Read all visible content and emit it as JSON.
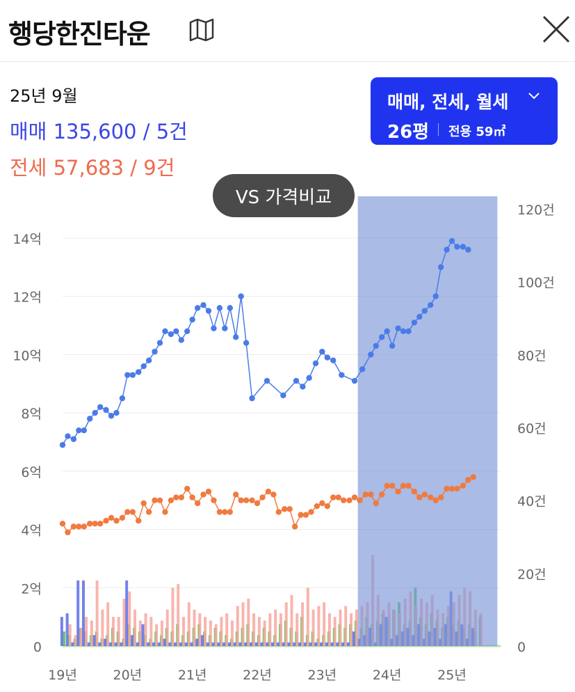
{
  "header": {
    "title": "행당한진타운",
    "map_icon": "map-icon",
    "close_icon": "close-icon"
  },
  "summary": {
    "date": "25년 9월",
    "sale": "매매 135,600 / 5건",
    "jeonse": "전세 57,683 / 9건"
  },
  "filter": {
    "types": "매매, 전세, 월세",
    "size": "26평",
    "area": "전용 59㎡"
  },
  "vs_button": {
    "label": "VS 가격비교"
  },
  "colors": {
    "sale": "#4a7be8",
    "jeonse": "#f07a3f",
    "highlight": "#7d97d8",
    "bar_green": "#4fc24a",
    "bar_pink": "#f7a8a0",
    "bar_blue": "#5a6de8"
  },
  "chart_data": {
    "type": "line",
    "x_ticks": [
      "19년",
      "20년",
      "21년",
      "22년",
      "23년",
      "24년",
      "25년"
    ],
    "y_left_ticks": [
      "0",
      "2억",
      "4억",
      "6억",
      "8억",
      "10억",
      "12억",
      "14억"
    ],
    "y_left_range": [
      0,
      15
    ],
    "y_right_ticks": [
      "0",
      "20건",
      "40건",
      "60건",
      "80건",
      "100건",
      "120건"
    ],
    "y_right_range": [
      0,
      120
    ],
    "x_range": [
      2019.0,
      2025.75
    ],
    "highlight_range": [
      2023.55,
      2025.7
    ],
    "series": [
      {
        "key": "sale",
        "x": [
          2019.0,
          2019.08,
          2019.17,
          2019.25,
          2019.33,
          2019.42,
          2019.5,
          2019.58,
          2019.67,
          2019.75,
          2019.83,
          2019.92,
          2020.0,
          2020.08,
          2020.17,
          2020.25,
          2020.33,
          2020.42,
          2020.5,
          2020.58,
          2020.67,
          2020.75,
          2020.83,
          2020.92,
          2021.0,
          2021.08,
          2021.17,
          2021.25,
          2021.33,
          2021.42,
          2021.5,
          2021.58,
          2021.67,
          2021.75,
          2021.83,
          2021.92,
          2022.15,
          2022.4,
          2022.6,
          2022.7,
          2022.8,
          2022.9,
          2023.0,
          2023.08,
          2023.17,
          2023.3,
          2023.5,
          2023.62,
          2023.75,
          2023.83,
          2023.92,
          2024.0,
          2024.08,
          2024.17,
          2024.25,
          2024.33,
          2024.42,
          2024.5,
          2024.58,
          2024.67,
          2024.75,
          2024.83,
          2024.92,
          2025.0,
          2025.08,
          2025.17,
          2025.25
        ],
        "y": [
          6.9,
          7.2,
          7.1,
          7.4,
          7.4,
          7.8,
          8.0,
          8.2,
          8.1,
          7.9,
          8.0,
          8.5,
          9.3,
          9.3,
          9.4,
          9.6,
          9.8,
          10.1,
          10.4,
          10.8,
          10.7,
          10.8,
          10.5,
          10.8,
          11.2,
          11.6,
          11.7,
          11.5,
          10.9,
          11.6,
          10.9,
          11.6,
          10.6,
          12.0,
          10.4,
          8.5,
          9.1,
          8.6,
          9.1,
          8.9,
          9.2,
          9.7,
          10.1,
          9.9,
          9.8,
          9.3,
          9.1,
          9.5,
          10.0,
          10.3,
          10.6,
          10.8,
          10.3,
          10.9,
          10.8,
          10.8,
          11.1,
          11.3,
          11.5,
          11.7,
          12.0,
          13.0,
          13.6,
          13.9,
          13.7,
          13.7,
          13.6
        ]
      },
      {
        "key": "jeonse",
        "x": [
          2019.0,
          2019.08,
          2019.17,
          2019.25,
          2019.33,
          2019.42,
          2019.5,
          2019.58,
          2019.67,
          2019.75,
          2019.83,
          2019.92,
          2020.0,
          2020.08,
          2020.17,
          2020.25,
          2020.33,
          2020.42,
          2020.5,
          2020.58,
          2020.67,
          2020.75,
          2020.83,
          2020.92,
          2021.0,
          2021.08,
          2021.17,
          2021.25,
          2021.33,
          2021.42,
          2021.5,
          2021.58,
          2021.67,
          2021.75,
          2021.83,
          2021.92,
          2022.0,
          2022.08,
          2022.17,
          2022.25,
          2022.33,
          2022.42,
          2022.5,
          2022.58,
          2022.67,
          2022.75,
          2022.83,
          2022.92,
          2023.0,
          2023.08,
          2023.17,
          2023.25,
          2023.33,
          2023.42,
          2023.5,
          2023.58,
          2023.67,
          2023.75,
          2023.83,
          2023.92,
          2024.0,
          2024.08,
          2024.17,
          2024.25,
          2024.33,
          2024.42,
          2024.5,
          2024.58,
          2024.67,
          2024.75,
          2024.83,
          2024.92,
          2025.0,
          2025.08,
          2025.17,
          2025.25,
          2025.33
        ],
        "y": [
          4.2,
          3.9,
          4.1,
          4.1,
          4.1,
          4.2,
          4.2,
          4.2,
          4.3,
          4.4,
          4.3,
          4.4,
          4.6,
          4.6,
          4.3,
          4.9,
          4.6,
          5.0,
          5.0,
          4.6,
          5.0,
          5.1,
          5.1,
          5.4,
          5.1,
          4.9,
          5.2,
          5.3,
          5.0,
          4.6,
          4.6,
          4.6,
          5.2,
          5.0,
          5.0,
          5.0,
          4.9,
          5.1,
          5.3,
          5.2,
          4.6,
          4.7,
          4.7,
          4.1,
          4.5,
          4.5,
          4.6,
          4.8,
          4.9,
          4.8,
          5.1,
          5.1,
          5.0,
          5.0,
          5.1,
          5.0,
          5.2,
          5.2,
          4.9,
          5.2,
          5.5,
          5.5,
          5.3,
          5.5,
          5.5,
          5.3,
          5.1,
          5.2,
          5.1,
          5.0,
          5.1,
          5.4,
          5.4,
          5.4,
          5.5,
          5.7,
          5.8
        ]
      }
    ],
    "volume_series": [
      {
        "key": "bar_green",
        "x_start": 2019.0,
        "step": 0.0833,
        "values": [
          4,
          3,
          2,
          5,
          4,
          3,
          4,
          2,
          3,
          5,
          4,
          2,
          6,
          5,
          4,
          3,
          2,
          4,
          3,
          5,
          4,
          6,
          3,
          4,
          5,
          6,
          4,
          3,
          5,
          4,
          3,
          2,
          4,
          5,
          6,
          4,
          3,
          5,
          4,
          3,
          6,
          7,
          5,
          4,
          8,
          3,
          4,
          2,
          3,
          4,
          5,
          6,
          5,
          6,
          7,
          5,
          8,
          6,
          7,
          9,
          8,
          10,
          12,
          6,
          7,
          16,
          8,
          6,
          9,
          7,
          5,
          8,
          6,
          7,
          5,
          6,
          4,
          8
        ]
      },
      {
        "key": "bar_pink",
        "x_start": 2019.04,
        "step": 0.0833,
        "values": [
          6,
          3,
          5,
          8,
          7,
          18,
          10,
          12,
          8,
          8,
          13,
          15,
          10,
          7,
          9,
          8,
          6,
          7,
          10,
          16,
          17,
          8,
          12,
          10,
          9,
          8,
          7,
          6,
          8,
          9,
          7,
          11,
          12,
          13,
          9,
          8,
          7,
          9,
          10,
          9,
          12,
          14,
          9,
          12,
          16,
          10,
          11,
          12,
          9,
          8,
          10,
          11,
          9,
          10,
          11,
          12,
          25,
          14,
          10,
          12,
          10,
          9,
          13,
          15,
          11,
          13,
          12,
          14,
          10,
          9,
          11,
          12,
          14,
          16,
          15,
          10,
          9
        ]
      },
      {
        "key": "bar_blue",
        "x_start": 2019.02,
        "step": 0.0833,
        "values": [
          8,
          9,
          1,
          18,
          18,
          1,
          3,
          1,
          2,
          1,
          1,
          1,
          18,
          3,
          1,
          6,
          1,
          1,
          1,
          2,
          1,
          1,
          1,
          1,
          1,
          2,
          3,
          1,
          1,
          1,
          1,
          1,
          1,
          1,
          1,
          1,
          1,
          1,
          1,
          1,
          1,
          1,
          1,
          1,
          1,
          1,
          1,
          1,
          1,
          1,
          1,
          1,
          1,
          1,
          4,
          2,
          3,
          5,
          1,
          6,
          8,
          2,
          3,
          4,
          5,
          3,
          6,
          2,
          4,
          5,
          2,
          6,
          15,
          4,
          6,
          2,
          5
        ]
      }
    ]
  }
}
